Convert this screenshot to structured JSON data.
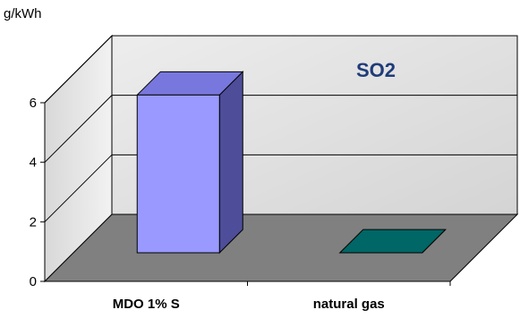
{
  "chart_data": {
    "type": "bar",
    "title": "SO2",
    "xlabel": "",
    "ylabel": "g/kWh",
    "categories": [
      "MDO 1% S",
      "natural gas"
    ],
    "values": [
      5.3,
      0.0
    ],
    "ylim": [
      0,
      6
    ],
    "yticks": [
      "0",
      "2",
      "4",
      "6"
    ],
    "grid": true,
    "legend": "none",
    "colors": {
      "bar_front": [
        "#9999ff",
        "#006666"
      ],
      "bar_side": [
        "#4d4d99",
        "#003333"
      ],
      "bar_top": [
        "#7777dd",
        "#006666"
      ],
      "floor": "#808080",
      "walls": "#e6e6e6",
      "title": "#1f3c7a"
    }
  }
}
